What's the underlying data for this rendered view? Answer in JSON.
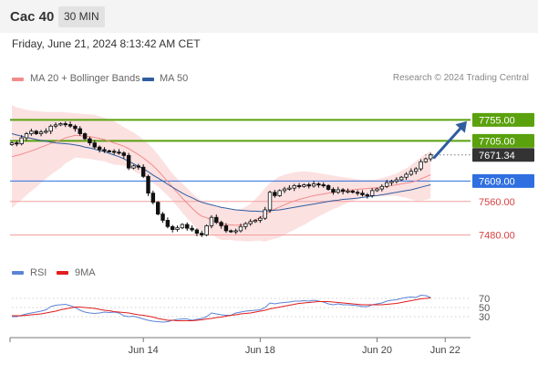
{
  "header": {
    "instrument": "Cac 40",
    "timeframe": "30 MIN",
    "datetime": "Friday, June 21, 2024 8:13:42 AM CET"
  },
  "legend": {
    "ma20_bb": "MA 20 + Bollinger Bands",
    "ma50": "MA 50",
    "rsi": "RSI",
    "ma9": "9MA",
    "credit": "Research © 2024 Trading Central"
  },
  "colors": {
    "ma20": "#f28b8b",
    "ma50": "#2f5d9e",
    "band_fill": "#fbdcdc",
    "candle": "#111111",
    "green_level": "#5aa10d",
    "blue_level": "#2f6fe0",
    "red_level": "#f2a0a0",
    "arrow": "#2f5d9e",
    "rsi_line": "#5b83d6",
    "rsi_ma": "#e11d1d"
  },
  "chart_data": [
    {
      "type": "candlestick",
      "ylim": [
        7420,
        7830
      ],
      "x_ticks": [
        "Jun 14",
        "Jun 18",
        "Jun 20",
        "Jun 22"
      ],
      "close": [
        7700,
        7698,
        7712,
        7722,
        7728,
        7722,
        7726,
        7728,
        7740,
        7743,
        7746,
        7744,
        7740,
        7734,
        7722,
        7710,
        7700,
        7690,
        7684,
        7681,
        7680,
        7678,
        7676,
        7670,
        7640,
        7645,
        7642,
        7620,
        7580,
        7558,
        7530,
        7515,
        7500,
        7493,
        7497,
        7505,
        7496,
        7492,
        7484,
        7480,
        7502,
        7522,
        7510,
        7502,
        7490,
        7488,
        7490,
        7500,
        7507,
        7512,
        7515,
        7520,
        7540,
        7582,
        7574,
        7586,
        7590,
        7592,
        7598,
        7596,
        7600,
        7597,
        7602,
        7600,
        7598,
        7589,
        7582,
        7588,
        7584,
        7585,
        7582,
        7580,
        7576,
        7574,
        7586,
        7590,
        7596,
        7605,
        7608,
        7612,
        7618,
        7625,
        7632,
        7638,
        7655,
        7662,
        7671.34
      ],
      "ma20": [
        7667,
        7670,
        7673,
        7677,
        7681,
        7685,
        7690,
        7694,
        7699,
        7703,
        7707,
        7712,
        7715,
        7718,
        7717,
        7716,
        7715,
        7713,
        7711,
        7708,
        7704,
        7700,
        7696,
        7692,
        7686,
        7679,
        7672,
        7664,
        7655,
        7645,
        7634,
        7621,
        7608,
        7594,
        7581,
        7568,
        7556,
        7544,
        7533,
        7525,
        7521,
        7516,
        7511,
        7507,
        7505,
        7504,
        7503,
        7504,
        7506,
        7510,
        7516,
        7522,
        7528,
        7536,
        7542,
        7547,
        7552,
        7557,
        7561,
        7565,
        7568,
        7571,
        7574,
        7576,
        7578,
        7580,
        7582,
        7583,
        7585,
        7587,
        7588,
        7589,
        7590,
        7591,
        7592,
        7593,
        7594,
        7596,
        7598,
        7600,
        7602,
        7604,
        7606,
        7609,
        7614,
        7619,
        7624
      ],
      "bb_upper": [
        7790,
        7785,
        7782,
        7779,
        7777,
        7776,
        7775,
        7774,
        7774,
        7774,
        7774,
        7773,
        7772,
        7771,
        7770,
        7769,
        7768,
        7767,
        7764,
        7760,
        7756,
        7752,
        7745,
        7738,
        7731,
        7725,
        7717,
        7708,
        7698,
        7686,
        7672,
        7657,
        7642,
        7627,
        7614,
        7603,
        7592,
        7580,
        7570,
        7561,
        7556,
        7552,
        7548,
        7546,
        7542,
        7540,
        7540,
        7542,
        7547,
        7555,
        7566,
        7578,
        7592,
        7604,
        7613,
        7620,
        7624,
        7627,
        7630,
        7631,
        7632,
        7631,
        7630,
        7628,
        7626,
        7624,
        7622,
        7620,
        7618,
        7617,
        7615,
        7613,
        7612,
        7612,
        7612,
        7613,
        7616,
        7619,
        7623,
        7627,
        7633,
        7639,
        7647,
        7656,
        7666,
        7674,
        7681
      ],
      "bb_lower": [
        7544,
        7555,
        7564,
        7575,
        7585,
        7594,
        7605,
        7614,
        7624,
        7632,
        7640,
        7651,
        7658,
        7665,
        7664,
        7663,
        7662,
        7659,
        7658,
        7656,
        7652,
        7648,
        7647,
        7646,
        7641,
        7633,
        7627,
        7620,
        7612,
        7604,
        7596,
        7585,
        7574,
        7561,
        7548,
        7533,
        7520,
        7508,
        7496,
        7489,
        7486,
        7480,
        7474,
        7468,
        7468,
        7468,
        7466,
        7466,
        7465,
        7465,
        7466,
        7466,
        7464,
        7468,
        7471,
        7474,
        7480,
        7487,
        7492,
        7499,
        7504,
        7511,
        7518,
        7524,
        7530,
        7536,
        7542,
        7546,
        7552,
        7557,
        7561,
        7565,
        7568,
        7570,
        7572,
        7573,
        7572,
        7573,
        7573,
        7573,
        7571,
        7569,
        7565,
        7562,
        7562,
        7564,
        7567
      ],
      "ma50": [
        7722,
        7719,
        7716,
        7713,
        7711,
        7708,
        7706,
        7704,
        7702,
        7700,
        7699,
        7698,
        7697,
        7695,
        7693,
        7690,
        7688,
        7685,
        7682,
        7679,
        7675,
        7671,
        7667,
        7662,
        7656,
        7650,
        7644,
        7638,
        7631,
        7623,
        7616,
        7609,
        7601,
        7594,
        7587,
        7580,
        7574,
        7569,
        7563,
        7558,
        7555,
        7552,
        7549,
        7546,
        7544,
        7542,
        7540,
        7539,
        7538,
        7537,
        7537,
        7536,
        7536,
        7538,
        7539,
        7540,
        7542,
        7544,
        7546,
        7548,
        7550,
        7552,
        7554,
        7556,
        7558,
        7560,
        7562,
        7563,
        7565,
        7566,
        7567,
        7568,
        7570,
        7571,
        7573,
        7574,
        7576,
        7578,
        7580,
        7582,
        7584,
        7586,
        7588,
        7591,
        7594,
        7597,
        7600
      ],
      "levels": [
        {
          "value": 7755.0,
          "label": "7755.00",
          "kind": "green"
        },
        {
          "value": 7705.0,
          "label": "7705.00",
          "kind": "green"
        },
        {
          "value": 7671.34,
          "label": "7671.34",
          "kind": "last"
        },
        {
          "value": 7609.0,
          "label": "7609.00",
          "kind": "blue"
        },
        {
          "value": 7560.0,
          "label": "7560.00",
          "kind": "red"
        },
        {
          "value": 7480.0,
          "label": "7480.00",
          "kind": "red"
        }
      ],
      "arrow": {
        "from": 7665,
        "to": 7752
      }
    },
    {
      "type": "line",
      "series": [
        {
          "name": "RSI",
          "values": [
            30,
            30,
            33,
            36,
            38,
            40,
            42,
            45,
            52,
            55,
            56,
            57,
            54,
            50,
            44,
            40,
            38,
            37,
            38,
            40,
            39,
            40,
            38,
            32,
            30,
            31,
            28,
            25,
            22,
            20,
            19,
            18,
            19,
            22,
            24,
            25,
            25,
            22,
            24,
            26,
            30,
            38,
            36,
            34,
            33,
            33,
            38,
            40,
            42,
            43,
            44,
            45,
            50,
            60,
            58,
            60,
            61,
            62,
            64,
            64,
            65,
            64,
            66,
            64,
            62,
            58,
            56,
            58,
            56,
            56,
            55,
            54,
            52,
            52,
            56,
            58,
            60,
            64,
            66,
            67,
            70,
            72,
            73,
            72,
            77,
            76,
            72
          ]
        },
        {
          "name": "9MA",
          "values": [
            32,
            32,
            32,
            33,
            34,
            35,
            36,
            38,
            40,
            42,
            45,
            47,
            49,
            51,
            51,
            50,
            49,
            48,
            46,
            44,
            43,
            41,
            40,
            39,
            38,
            36,
            34,
            33,
            31,
            29,
            26,
            24,
            22,
            22,
            21,
            21,
            21,
            21,
            22,
            23,
            25,
            26,
            28,
            29,
            31,
            33,
            34,
            36,
            37,
            38,
            40,
            42,
            44,
            47,
            49,
            51,
            53,
            55,
            57,
            59,
            60,
            61,
            62,
            63,
            63,
            63,
            62,
            61,
            60,
            59,
            58,
            57,
            56,
            56,
            56,
            56,
            56,
            57,
            58,
            59,
            61,
            63,
            65,
            67,
            69,
            70,
            71
          ]
        }
      ],
      "ylim": [
        0,
        100
      ],
      "y_ticks": [
        "70",
        "50",
        "30"
      ]
    }
  ]
}
